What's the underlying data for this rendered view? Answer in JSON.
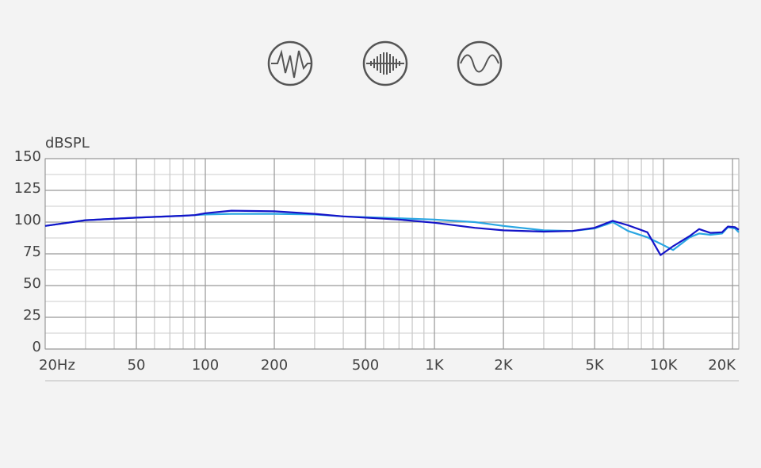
{
  "chart_data": {
    "type": "line",
    "ylabel": "dBSPL",
    "log_x": true,
    "grid": true,
    "xlim": [
      20,
      21300
    ],
    "ylim": [
      0,
      150
    ],
    "yticks": [
      0,
      25,
      50,
      75,
      100,
      125,
      150
    ],
    "xticks": [
      {
        "value": 20,
        "label": "20Hz"
      },
      50,
      100,
      200,
      500,
      {
        "value": 1000,
        "label": "1K"
      },
      {
        "value": 2000,
        "label": "2K"
      },
      {
        "value": 5000,
        "label": "5K"
      },
      {
        "value": 10000,
        "label": "10K"
      },
      {
        "value": 20000,
        "label": "20K"
      }
    ],
    "x": [
      20,
      30,
      50,
      80,
      90,
      100,
      130,
      200,
      300,
      400,
      700,
      1000,
      1500,
      2000,
      3000,
      4000,
      5000,
      5700,
      6000,
      7000,
      8500,
      9700,
      11000,
      13000,
      14300,
      16000,
      18000,
      19100,
      20500,
      21300
    ],
    "series": [
      {
        "color": "#2aa6e2",
        "values": [
          97,
          101.5,
          103.5,
          105,
          105.5,
          106,
          106.5,
          106.5,
          106,
          104.5,
          103,
          102,
          100,
          97,
          93.5,
          93,
          95,
          98.5,
          100,
          93,
          88,
          83,
          78,
          88,
          91,
          90,
          91,
          96,
          95,
          92
        ]
      },
      {
        "color": "#1414c8",
        "values": [
          97,
          101.5,
          103.5,
          105,
          105.5,
          107,
          109,
          108.5,
          106.5,
          104.5,
          102,
          99.5,
          95.5,
          93.5,
          92.5,
          93,
          95.5,
          99.5,
          101,
          97.5,
          92,
          74,
          81,
          89,
          94.5,
          91.5,
          92,
          96.5,
          96,
          94
        ]
      }
    ]
  }
}
